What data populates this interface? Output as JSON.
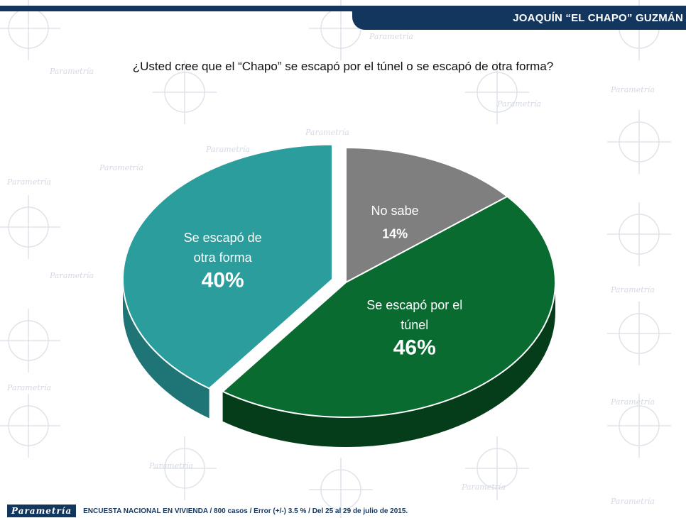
{
  "header": {
    "title": "JOAQUÍN “EL CHAPO” GUZMÁN"
  },
  "question": "¿Usted cree que el “Chapo” se escapó por el túnel o se escapó de otra forma?",
  "watermark_text": "Parametría",
  "footer": {
    "logo": "Parametría",
    "text": "ENCUESTA NACIONAL EN VIVIENDA  / 800 casos / Error (+/-) 3.5 % / Del 25 al 29 de julio de 2015."
  },
  "colors": {
    "brand": "#13365f",
    "no_sabe": "#7f7f7f",
    "tunel": "#0a6b30",
    "otra_forma": "#2a9d9c"
  },
  "chart_data": {
    "type": "pie",
    "title": "",
    "slices": [
      {
        "key": "no_sabe",
        "label_lines": [
          "No sabe"
        ],
        "value": 14,
        "value_label": "14%",
        "color": "#7f7f7f",
        "side": "#555555"
      },
      {
        "key": "tunel",
        "label_lines": [
          "Se escapó por el",
          "túnel"
        ],
        "value": 46,
        "value_label": "46%",
        "color": "#0a6b30",
        "side": "#053d1b"
      },
      {
        "key": "otra_forma",
        "label_lines": [
          "Se escapó de",
          "otra forma"
        ],
        "value": 40,
        "value_label": "40%",
        "color": "#2a9d9c",
        "side": "#1f7475"
      }
    ],
    "exploded": "otra_forma"
  }
}
